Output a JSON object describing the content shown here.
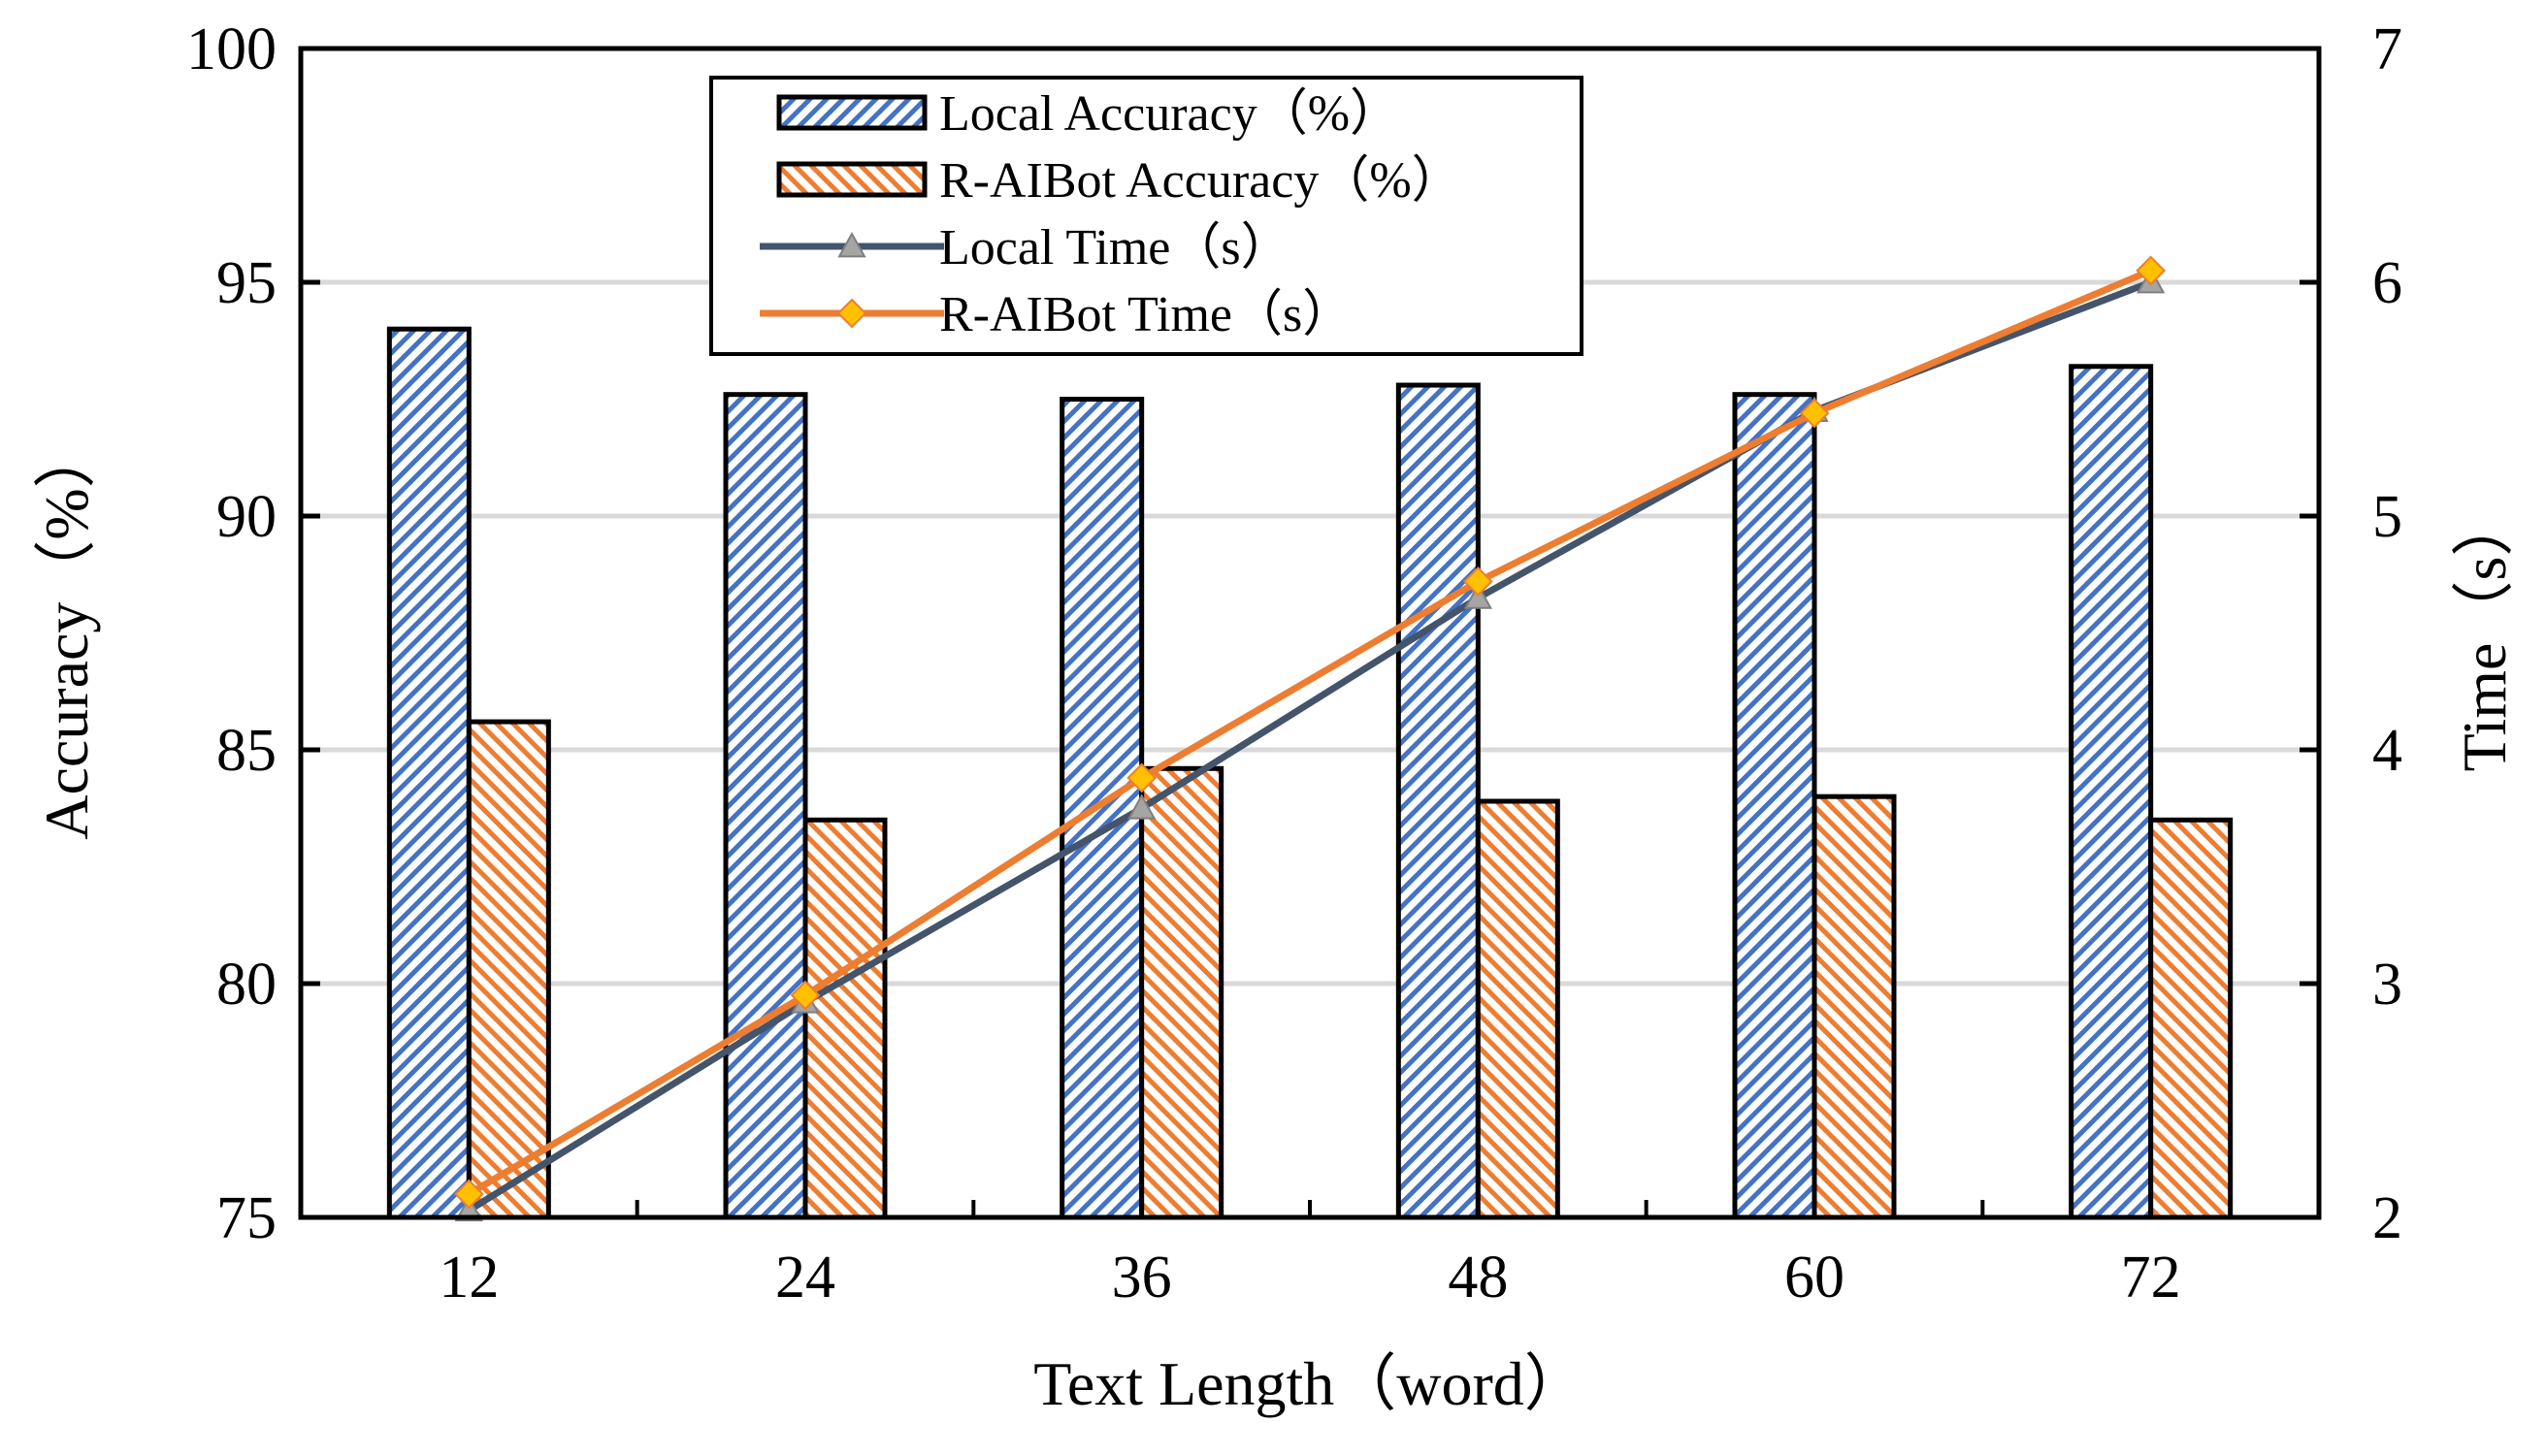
{
  "chart_data": {
    "type": "bar",
    "categories": [
      "12",
      "24",
      "36",
      "48",
      "60",
      "72"
    ],
    "xlabel": "Text Length（word）",
    "ylabel": "Accuracy（%）",
    "y2label": "Time（s）",
    "ylim": [
      75,
      100
    ],
    "y2lim": [
      2,
      7
    ],
    "yticks": [
      75,
      80,
      85,
      90,
      95,
      100
    ],
    "y2ticks": [
      2,
      3,
      4,
      5,
      6,
      7
    ],
    "grid": true,
    "legend_position": "top-center",
    "series": [
      {
        "name": "Local  Accuracy（%）",
        "kind": "bar",
        "axis": "left",
        "color": "#4472C4",
        "values": [
          94.0,
          92.6,
          92.5,
          92.8,
          92.6,
          93.2
        ]
      },
      {
        "name": "R-AIBot Accuracy（%）",
        "kind": "bar",
        "axis": "left",
        "color": "#ED7D31",
        "values": [
          85.6,
          83.5,
          84.6,
          83.9,
          84.0,
          83.5
        ]
      },
      {
        "name": "Local Time（s）",
        "kind": "line",
        "axis": "right",
        "color": "#44546A",
        "marker": "triangle",
        "values": [
          2.03,
          2.92,
          3.75,
          4.65,
          5.45,
          6.0
        ]
      },
      {
        "name": "R-AIBot Time（s）",
        "kind": "line",
        "axis": "right",
        "color": "#ED7D31",
        "marker": "diamond",
        "values": [
          2.1,
          2.95,
          3.88,
          4.72,
          5.44,
          6.05
        ]
      }
    ]
  }
}
